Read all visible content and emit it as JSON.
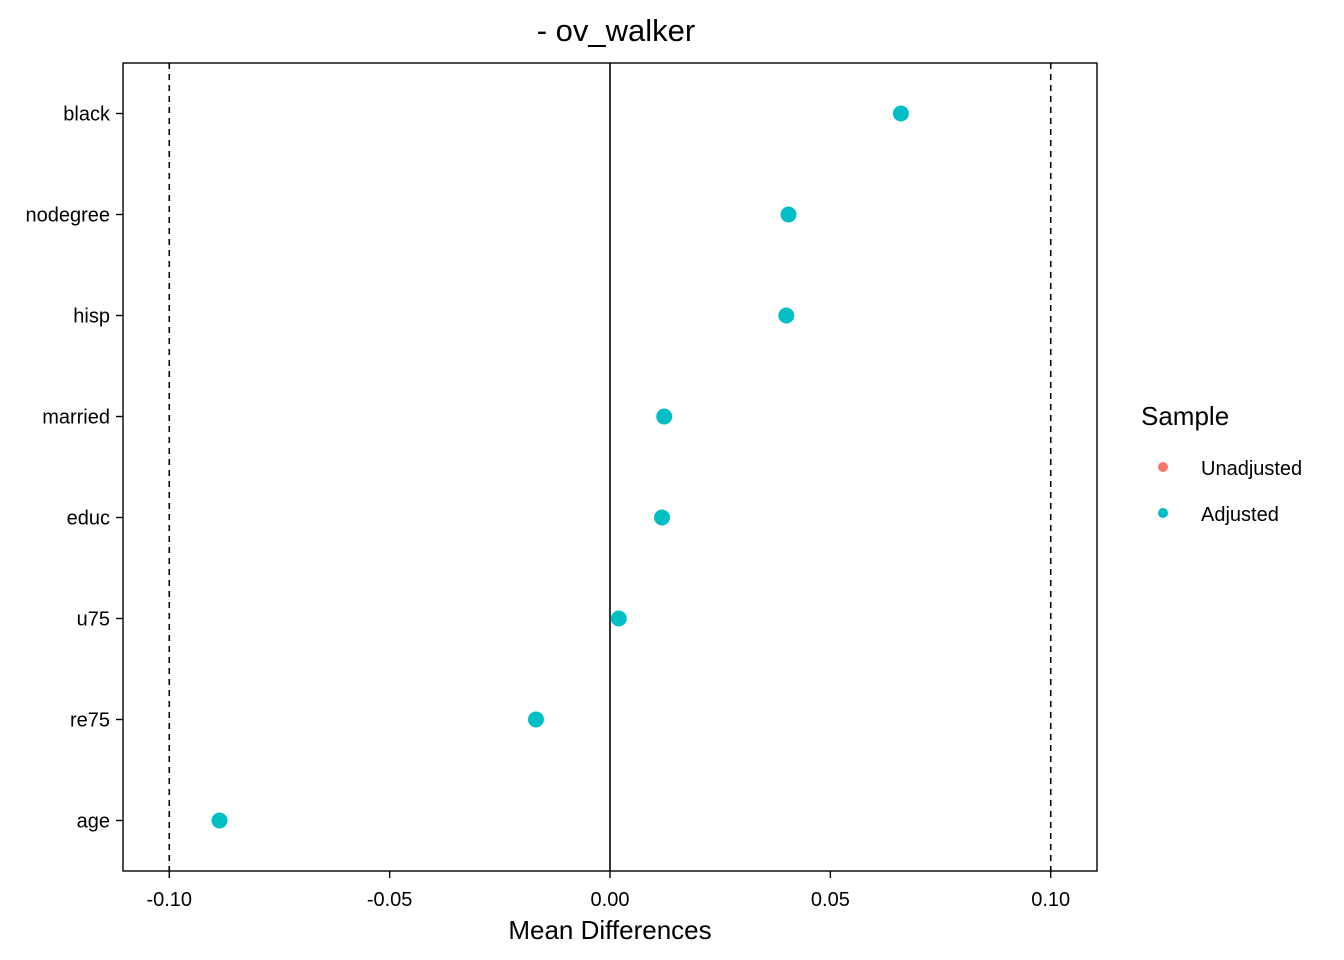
{
  "chart_data": {
    "type": "scatter",
    "title": "- ov_walker",
    "xlabel": "Mean Differences",
    "ylabel": "",
    "xlim": [
      -0.1105,
      0.1105
    ],
    "x_ticks": [
      -0.1,
      -0.05,
      0.0,
      0.05,
      0.1
    ],
    "x_tick_labels": [
      "-0.10",
      "-0.05",
      "0.00",
      "0.05",
      "0.10"
    ],
    "categories": [
      "black",
      "nodegree",
      "hisp",
      "married",
      "educ",
      "u75",
      "re75",
      "age"
    ],
    "series": [
      {
        "name": "Adjusted",
        "color": "#00BFC4",
        "values": [
          0.066,
          0.0405,
          0.04,
          0.0123,
          0.0118,
          0.002,
          -0.0168,
          -0.0886
        ]
      }
    ],
    "reference_lines": {
      "solid": [
        0.0
      ],
      "dashed": [
        -0.1,
        0.1
      ]
    },
    "grid": false,
    "legend": {
      "title": "Sample",
      "placement": "right",
      "items": [
        {
          "label": "Unadjusted",
          "color": "#F8766D"
        },
        {
          "label": "Adjusted",
          "color": "#00BFC4"
        }
      ]
    }
  }
}
